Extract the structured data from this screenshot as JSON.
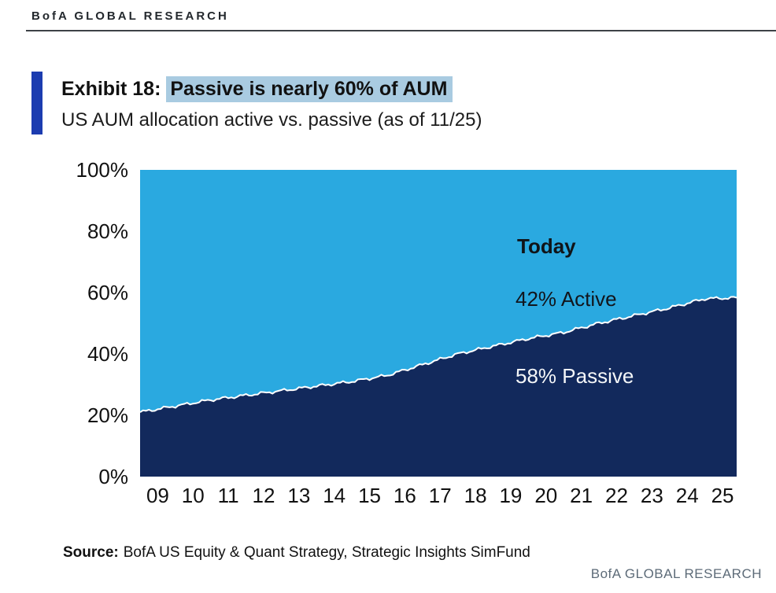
{
  "header": {
    "brand": "BofA GLOBAL RESEARCH"
  },
  "exhibit": {
    "label": "Exhibit 18:",
    "highlight": "Passive is nearly 60% of AUM",
    "subtitle": "US AUM allocation active vs. passive (as of 11/25)"
  },
  "annotations": {
    "today": "Today",
    "active": "42% Active",
    "passive": "58% Passive"
  },
  "footer": {
    "source_label": "Source:",
    "source_text": "BofA US Equity & Quant Strategy, Strategic Insights SimFund",
    "brand": "BofA GLOBAL RESEARCH"
  },
  "colors": {
    "active_area": "#2aa9e0",
    "passive_area": "#12295c",
    "boundary_line": "#ffffff",
    "exhibit_bar": "#1c3cb0",
    "highlight_bg": "#a9cbe1"
  },
  "chart_data": {
    "type": "area",
    "stacked": true,
    "title": "US AUM allocation active vs. passive (as of 11/25)",
    "xlabel": "",
    "ylabel": "",
    "x": [
      "09",
      "10",
      "11",
      "12",
      "13",
      "14",
      "15",
      "16",
      "17",
      "18",
      "19",
      "20",
      "21",
      "22",
      "23",
      "24",
      "25"
    ],
    "series": [
      {
        "name": "Passive",
        "values": [
          21,
          23,
          25,
          26.5,
          28,
          29.5,
          31,
          33,
          36.5,
          40,
          42.5,
          45,
          47,
          50,
          52.5,
          55,
          58
        ]
      },
      {
        "name": "Active",
        "values": [
          79,
          77,
          75,
          73.5,
          72,
          70.5,
          69,
          67,
          63.5,
          60,
          57.5,
          55,
          53,
          50,
          47.5,
          45,
          42
        ]
      }
    ],
    "ylim": [
      0,
      100
    ],
    "yticks": [
      "0%",
      "20%",
      "40%",
      "60%",
      "80%",
      "100%"
    ],
    "legend": "none",
    "grid": false
  }
}
